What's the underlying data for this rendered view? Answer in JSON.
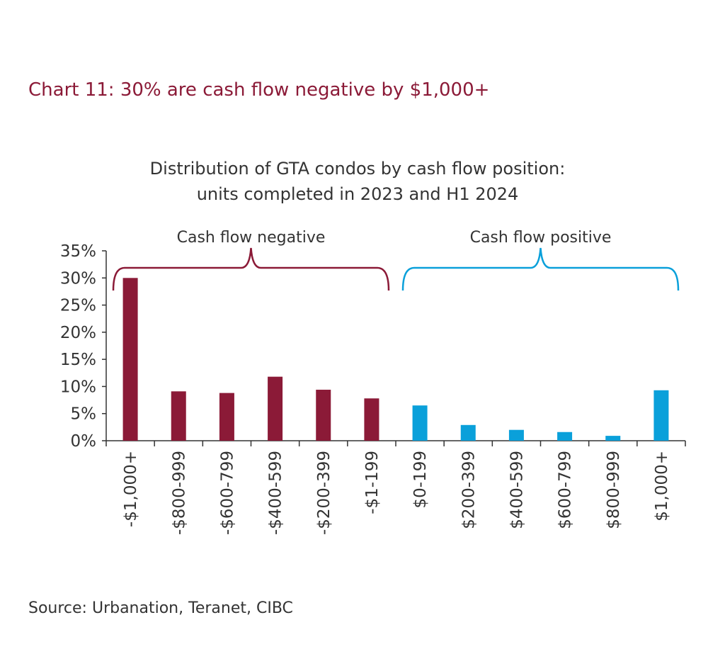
{
  "page": {
    "title": "Chart 11: 30% are cash flow negative by $1,000+",
    "source": "Source: Urbanation, Teranet, CIBC"
  },
  "colors": {
    "title": "#8b1a37",
    "negative": "#8b1a37",
    "positive": "#0aa0da",
    "axis": "#333333",
    "text": "#333333"
  },
  "chart_data": {
    "type": "bar",
    "title": "Distribution of GTA condos by cash flow position:",
    "subtitle": "units completed in 2023 and H1 2024",
    "categories": [
      "-$1,000+",
      "-$800-999",
      "-$600-799",
      "-$400-599",
      "-$200-399",
      "-$1-199",
      "$0-199",
      "$200-399",
      "$400-599",
      "$600-799",
      "$800-999",
      "$1,000+"
    ],
    "values": [
      30,
      9.1,
      8.8,
      11.8,
      9.4,
      7.8,
      6.5,
      2.9,
      2.0,
      1.6,
      0.9,
      9.3
    ],
    "groups": [
      {
        "label": "Cash flow negative",
        "from": 0,
        "to": 5,
        "color": "#8b1a37"
      },
      {
        "label": "Cash flow positive",
        "from": 6,
        "to": 11,
        "color": "#0aa0da"
      }
    ],
    "ylim": [
      0,
      35
    ],
    "yticks": [
      0,
      5,
      10,
      15,
      20,
      25,
      30,
      35
    ],
    "ytick_labels": [
      "0%",
      "5%",
      "10%",
      "15%",
      "20%",
      "25%",
      "30%",
      "35%"
    ],
    "grid": false
  }
}
